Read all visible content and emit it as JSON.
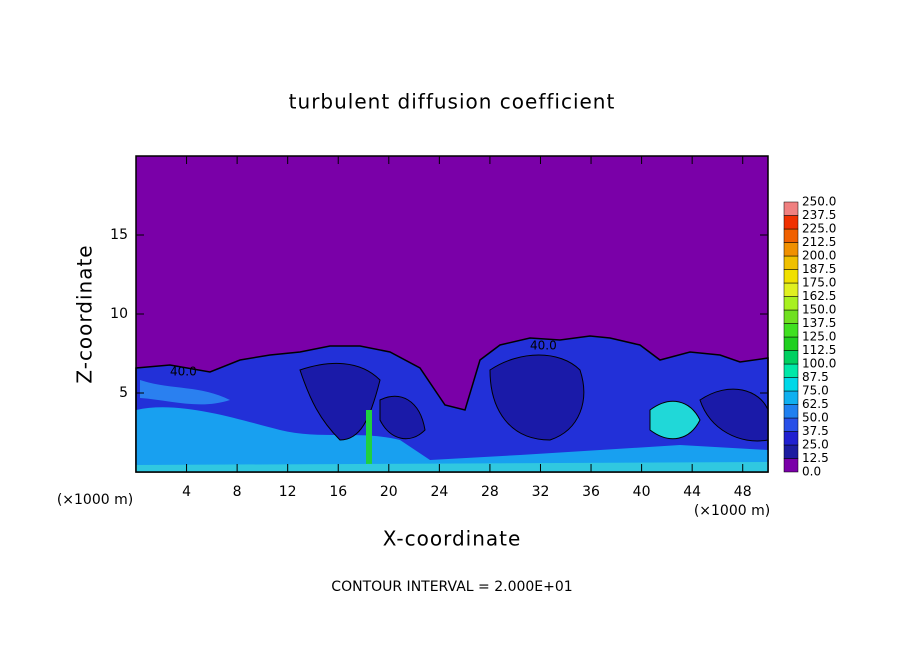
{
  "chart_data": {
    "type": "contour",
    "title": "turbulent diffusion coefficient",
    "x_label": "X-coordinate",
    "y_label": "Z-coordinate",
    "x_unit": "(×1000 m)",
    "y_unit": "(×1000 m)",
    "note": "CONTOUR INTERVAL = 2.000E+01",
    "contour_labels": [
      "40.0",
      "40.0"
    ],
    "xlim": [
      0,
      50
    ],
    "xticks": [
      4,
      8,
      12,
      16,
      20,
      24,
      28,
      32,
      36,
      40,
      44,
      48
    ],
    "ylim": [
      0,
      20
    ],
    "yticks": [
      5,
      10,
      15
    ],
    "colorbar": {
      "levels": [
        {
          "value": 0,
          "label": "0.0"
        },
        12.5,
        {
          "value": 25,
          "label": "25.0"
        },
        37.5,
        {
          "value": 50,
          "label": "50.0"
        },
        62.5,
        {
          "value": 75,
          "label": "75.0"
        },
        87.5,
        {
          "value": 100,
          "label": "100.0"
        },
        112.5,
        {
          "value": 125,
          "label": "125.0"
        },
        137.5,
        {
          "value": 150,
          "label": "150.0"
        },
        162.5,
        {
          "value": 175,
          "label": "175.0"
        },
        187.5,
        {
          "value": 200,
          "label": "200.0"
        },
        212.5,
        {
          "value": 225,
          "label": "225.0"
        },
        237.5,
        {
          "value": 250,
          "label": "250.0"
        }
      ],
      "colors": [
        "#7a00a8",
        "#1c1ca0",
        "#2020d0",
        "#2850e8",
        "#2080f0",
        "#10b0f0",
        "#00d8e8",
        "#00e8a8",
        "#00d060",
        "#20d020",
        "#40e020",
        "#70e020",
        "#a8f020",
        "#e0f020",
        "#f0e000",
        "#f0c000",
        "#f09000",
        "#f06000",
        "#f03000",
        "#f08080"
      ]
    }
  }
}
